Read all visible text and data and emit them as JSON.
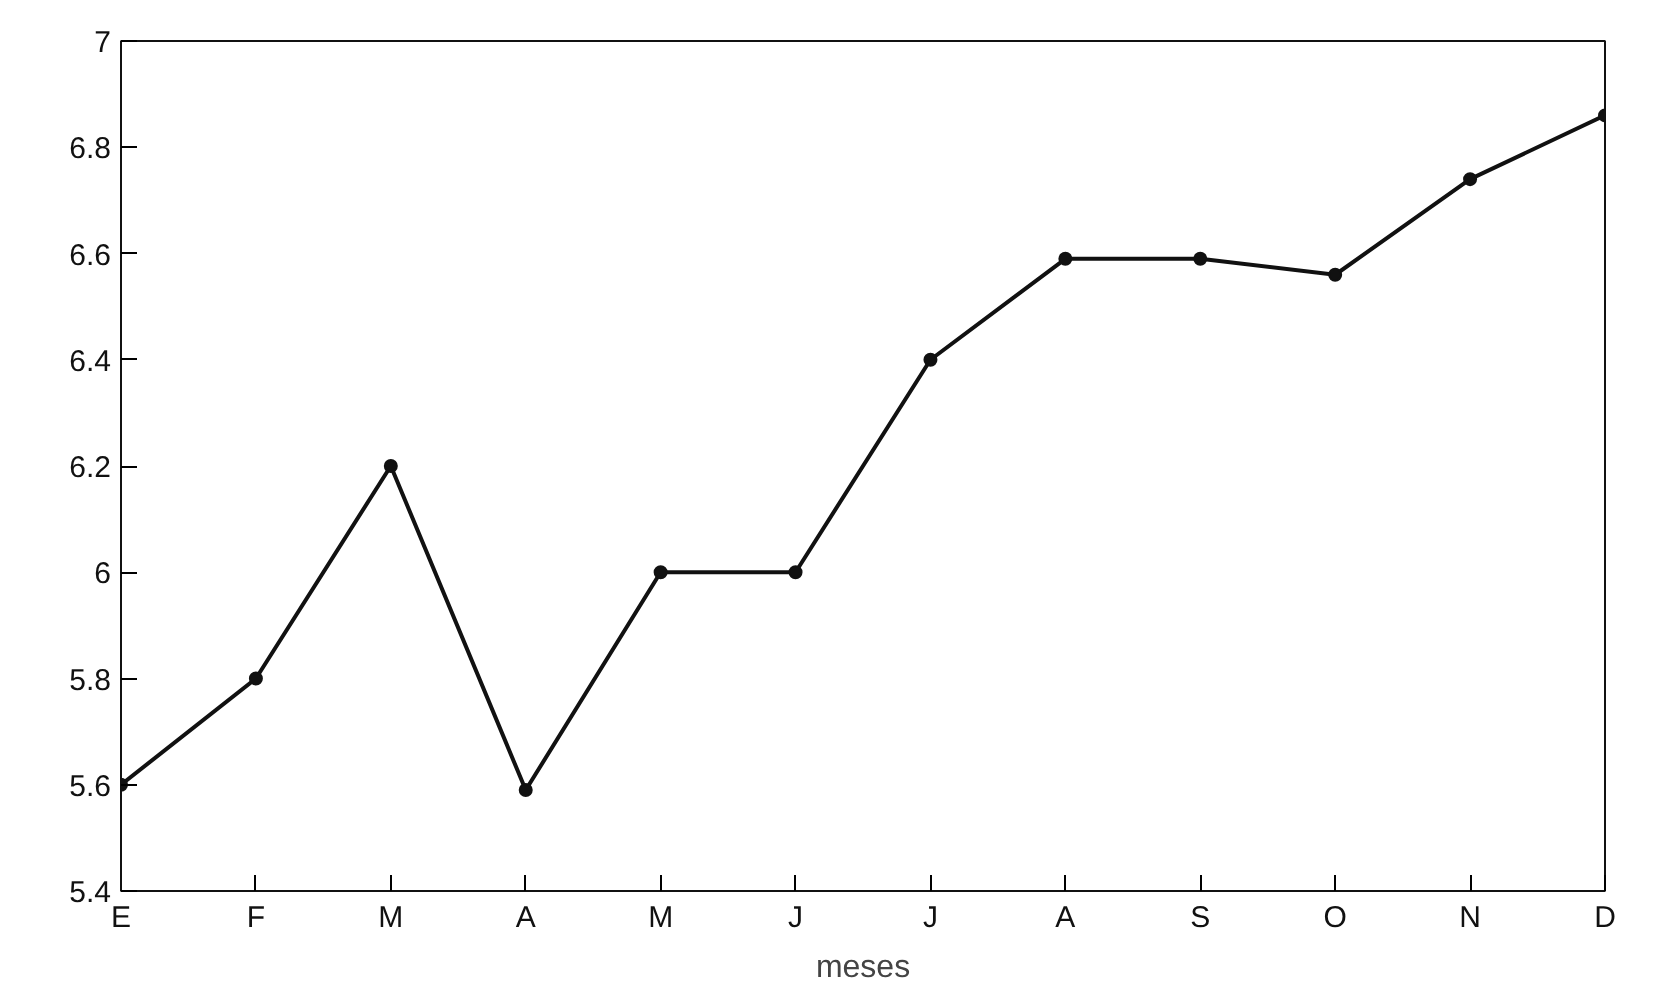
{
  "chart_data": {
    "type": "line",
    "xlabel": "meses",
    "categories": [
      "E",
      "F",
      "M",
      "A",
      "M",
      "J",
      "J",
      "A",
      "S",
      "O",
      "N",
      "D"
    ],
    "series": [
      {
        "color": "#111111",
        "values": [
          5.6,
          5.8,
          6.2,
          5.59,
          6.0,
          6.0,
          6.4,
          6.59,
          6.59,
          6.56,
          6.74,
          6.86
        ]
      }
    ],
    "ylim": [
      5.4,
      7
    ],
    "yticks": [
      5.4,
      5.6,
      5.8,
      6,
      6.2,
      6.4,
      6.6,
      6.8,
      7
    ],
    "grid": false,
    "marker": "circle",
    "line_style": "solid"
  }
}
